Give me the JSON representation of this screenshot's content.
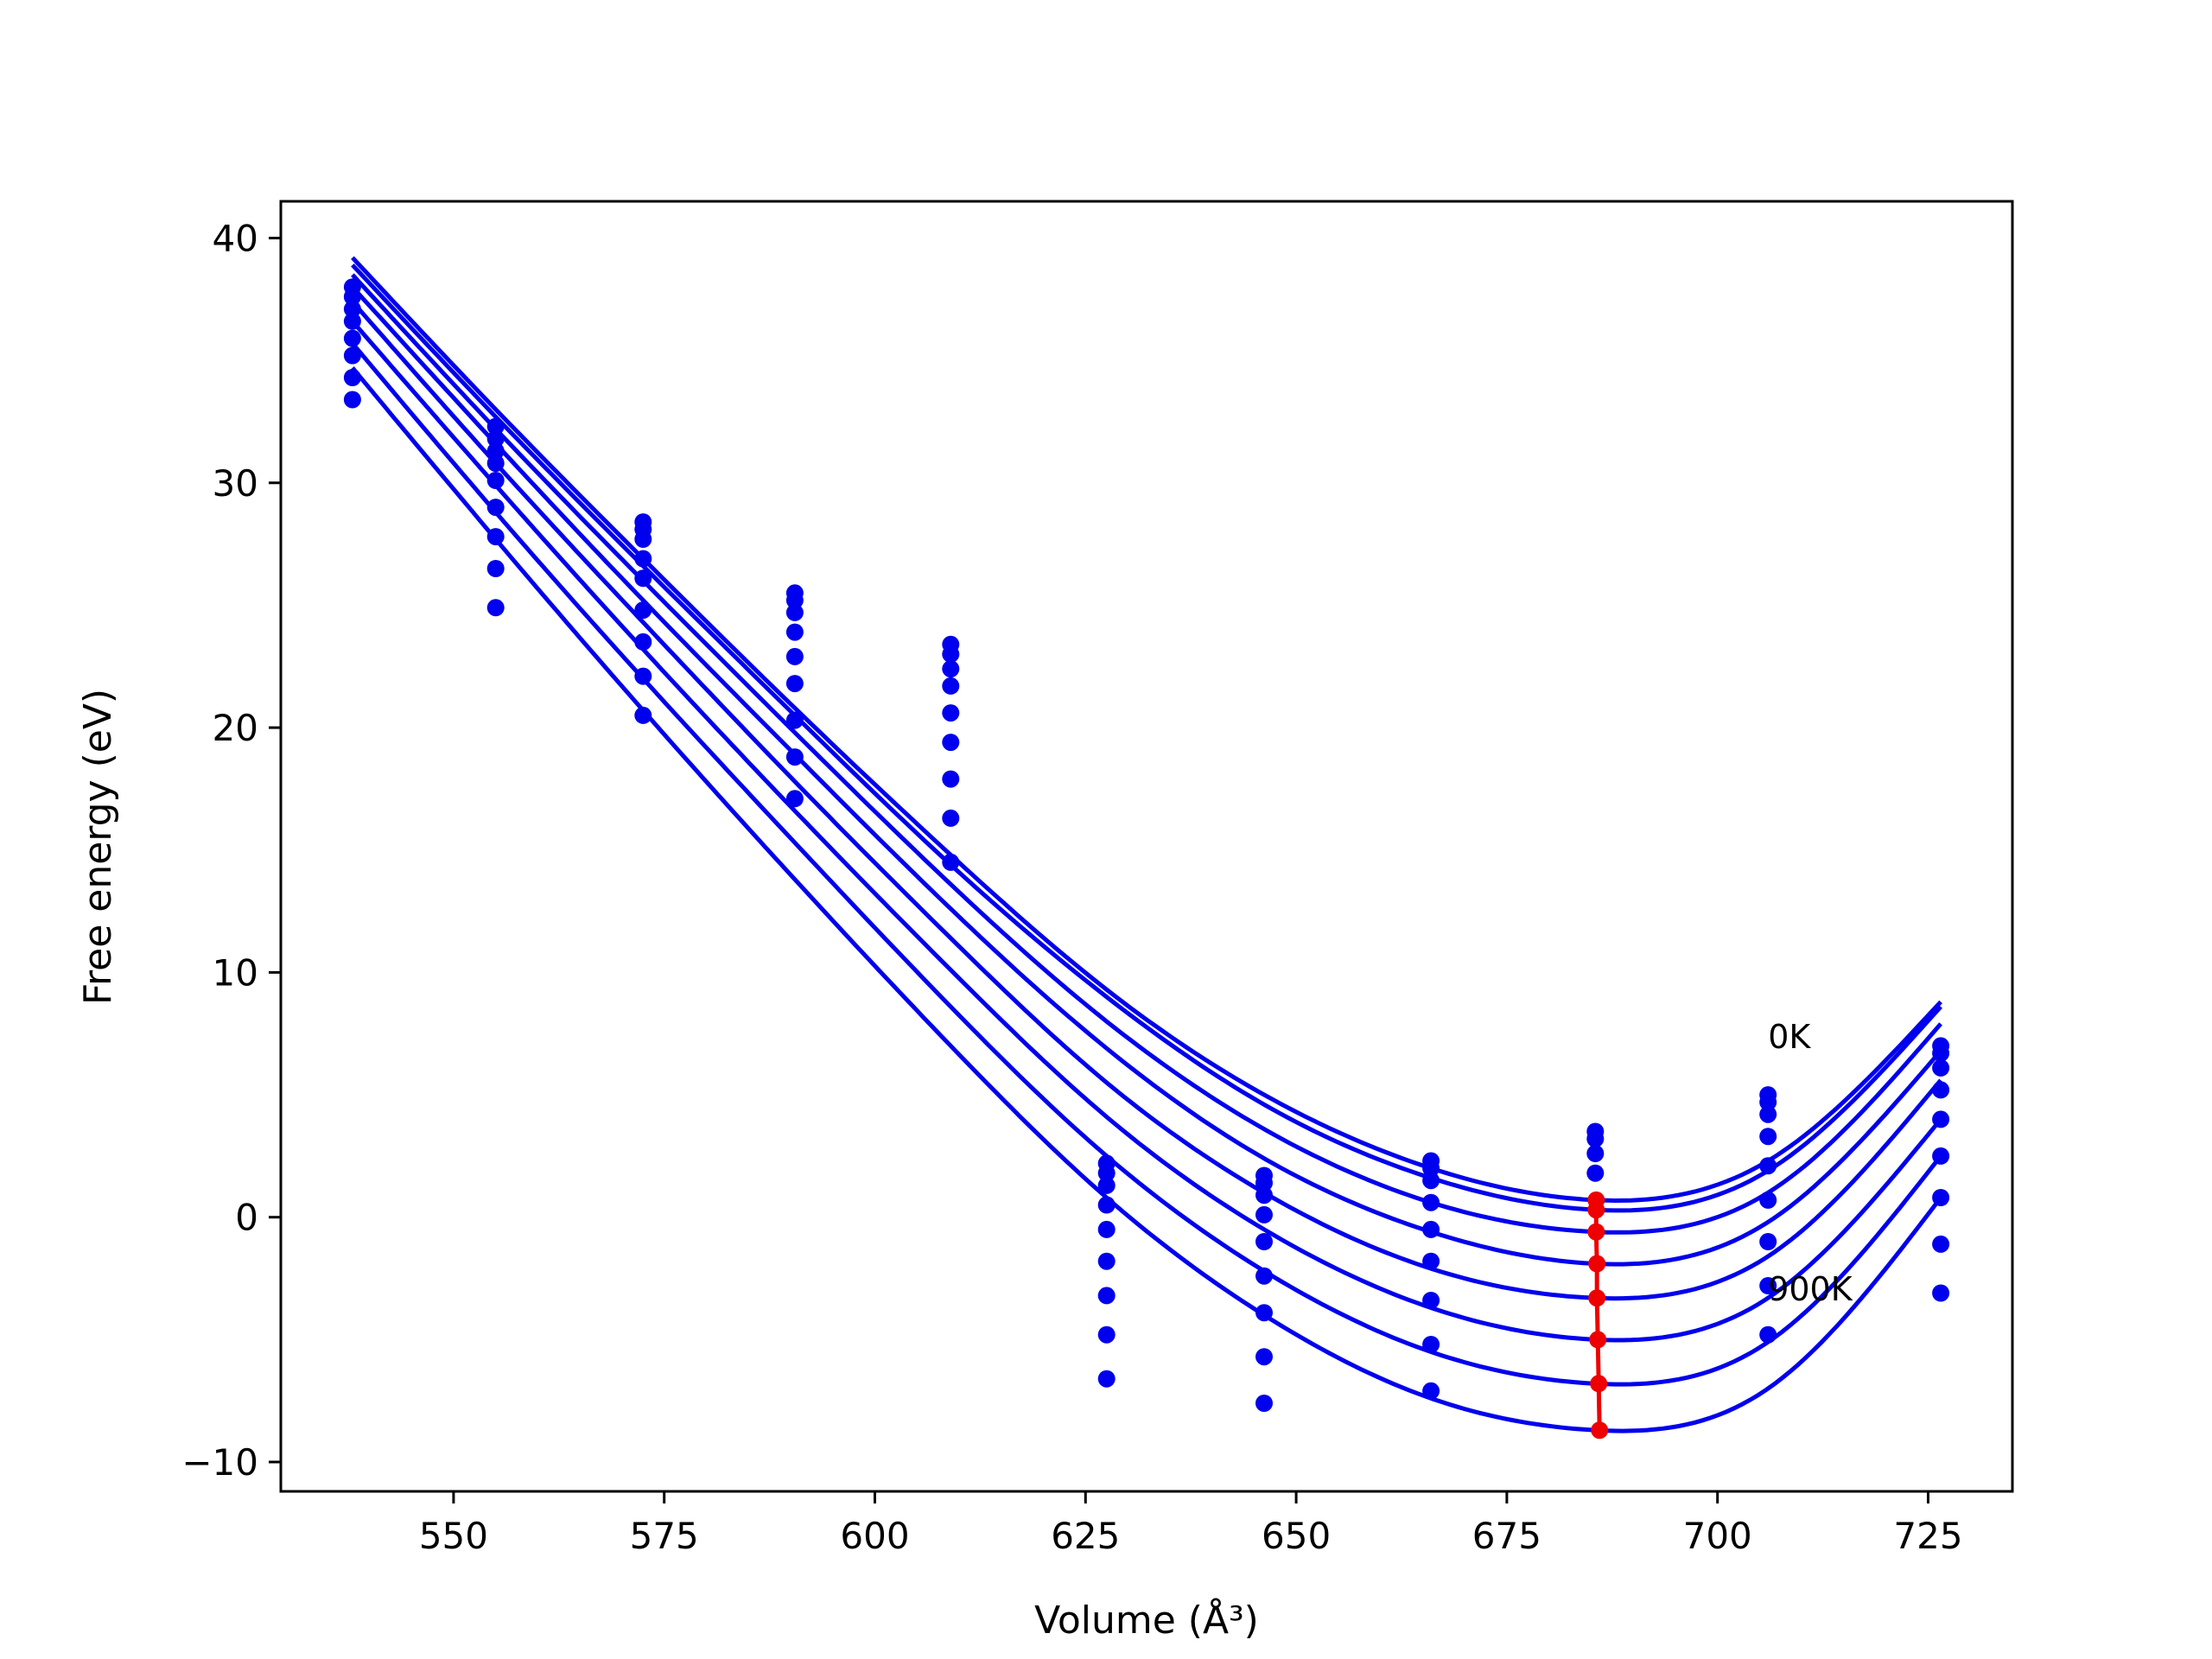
{
  "chart_data": {
    "type": "line",
    "xlabel": "Volume (Å³)",
    "ylabel": "Free energy (eV)",
    "xlim": [
      529.5,
      735.0
    ],
    "ylim": [
      -11.2,
      41.5
    ],
    "xticks": [
      550,
      575,
      600,
      625,
      650,
      675,
      700,
      725
    ],
    "yticks": [
      -10,
      0,
      10,
      20,
      30,
      40
    ],
    "grid": false,
    "legend": "none",
    "colors": {
      "curves": "#0000ee",
      "points": "#0000ee",
      "minimum_path": "#ee0000"
    },
    "annotations": [
      {
        "text": "0K",
        "x": 706,
        "y": 7.4
      },
      {
        "text": "900K",
        "x": 706,
        "y": -2.9
      }
    ],
    "curve_x_range": [
      538,
      726.5
    ],
    "fitted_curves": [
      {
        "x": [
          538,
          555,
          572.5,
          590.5,
          609,
          627.5,
          646.2,
          666,
          685.5,
          706,
          726.5
        ],
        "y": [
          39.2,
          33.0,
          26.9,
          20.8,
          14.8,
          9.3,
          5.0,
          2.0,
          0.7,
          2.3,
          8.8
        ]
      },
      {
        "x": [
          538,
          555,
          572.5,
          590.5,
          609,
          627.5,
          646.2,
          666,
          685.5,
          706,
          726.5
        ],
        "y": [
          38.9,
          32.7,
          26.6,
          20.5,
          14.4,
          9.0,
          4.6,
          1.6,
          0.3,
          1.9,
          8.6
        ]
      },
      {
        "x": [
          538,
          555,
          572.5,
          590.5,
          609,
          627.5,
          646.2,
          666,
          685.5,
          706,
          726.5
        ],
        "y": [
          38.5,
          32.2,
          26.0,
          19.8,
          13.6,
          8.0,
          3.6,
          0.6,
          -0.6,
          1.0,
          7.9
        ]
      },
      {
        "x": [
          538,
          555,
          572.5,
          590.5,
          609,
          627.5,
          646.2,
          666,
          685.5,
          706,
          726.5
        ],
        "y": [
          38.0,
          31.6,
          25.2,
          18.9,
          12.6,
          6.9,
          2.4,
          -0.6,
          -1.9,
          -0.2,
          6.8
        ]
      },
      {
        "x": [
          538,
          555,
          572.5,
          590.5,
          609,
          627.5,
          646.2,
          666,
          685.5,
          706,
          726.5
        ],
        "y": [
          37.4,
          30.8,
          24.3,
          17.8,
          11.4,
          5.5,
          1.0,
          -2.1,
          -3.3,
          -1.6,
          5.6
        ]
      },
      {
        "x": [
          538,
          555,
          572.5,
          590.5,
          609,
          627.5,
          646.2,
          666,
          685.5,
          706,
          726.5
        ],
        "y": [
          36.6,
          29.9,
          23.2,
          16.6,
          10.1,
          4.1,
          -0.5,
          -3.7,
          -5.0,
          -3.3,
          4.0
        ]
      },
      {
        "x": [
          538,
          555,
          572.5,
          590.5,
          609,
          627.5,
          646.2,
          666,
          685.5,
          706,
          726.5
        ],
        "y": [
          35.7,
          28.8,
          22.0,
          15.3,
          8.6,
          2.5,
          -2.2,
          -5.5,
          -6.8,
          -5.1,
          2.5
        ]
      },
      {
        "x": [
          538,
          555,
          572.5,
          590.5,
          609,
          627.5,
          646.2,
          666,
          685.5,
          706,
          726.5
        ],
        "y": [
          34.7,
          27.7,
          20.7,
          13.8,
          7.0,
          0.8,
          -4.0,
          -7.4,
          -8.7,
          -7.0,
          0.8
        ]
      }
    ],
    "scatter_points": [
      {
        "x": 538,
        "y": [
          38.0,
          37.6,
          37.1,
          36.6,
          35.9,
          35.2,
          34.3,
          33.4
        ]
      },
      {
        "x": 555,
        "y": [
          32.3,
          31.8,
          31.3,
          30.8,
          30.1,
          29.0,
          27.8,
          26.5,
          24.9
        ]
      },
      {
        "x": 572.5,
        "y": [
          28.4,
          28.1,
          27.7,
          26.9,
          26.1,
          24.8,
          23.5,
          22.1,
          20.5
        ]
      },
      {
        "x": 590.5,
        "y": [
          25.5,
          25.2,
          24.7,
          23.9,
          22.9,
          21.8,
          20.3,
          18.8,
          17.1
        ]
      },
      {
        "x": 609,
        "y": [
          23.4,
          23.0,
          22.4,
          21.7,
          20.6,
          19.4,
          17.9,
          16.3,
          14.5
        ]
      },
      {
        "x": 627.5,
        "y": [
          2.2,
          1.8,
          1.3,
          0.5,
          -0.5,
          -1.8,
          -3.2,
          -4.8,
          -6.6
        ]
      },
      {
        "x": 646.2,
        "y": [
          1.7,
          1.4,
          0.9,
          0.1,
          -1.0,
          -2.4,
          -3.9,
          -5.7,
          -7.6
        ]
      },
      {
        "x": 666,
        "y": [
          2.3,
          2.0,
          1.5,
          0.6,
          -0.5,
          -1.8,
          -3.4,
          -5.2,
          -7.1
        ]
      },
      {
        "x": 685.5,
        "y": [
          3.5,
          3.2,
          2.6,
          1.8
        ]
      },
      {
        "x": 706,
        "y": [
          5.0,
          4.7,
          4.2,
          3.3,
          2.1,
          0.7,
          -1.0,
          -2.8,
          -4.8
        ]
      },
      {
        "x": 726.5,
        "y": [
          7.0,
          6.7,
          6.1,
          5.2,
          4.0,
          2.5,
          0.8,
          -1.1,
          -3.1
        ]
      }
    ],
    "minimum_path": {
      "x": [
        685.6,
        685.6,
        685.6,
        685.7,
        685.7,
        685.8,
        685.9,
        686.0
      ],
      "y": [
        0.7,
        0.3,
        -0.6,
        -1.9,
        -3.3,
        -5.0,
        -6.8,
        -8.7
      ]
    }
  }
}
